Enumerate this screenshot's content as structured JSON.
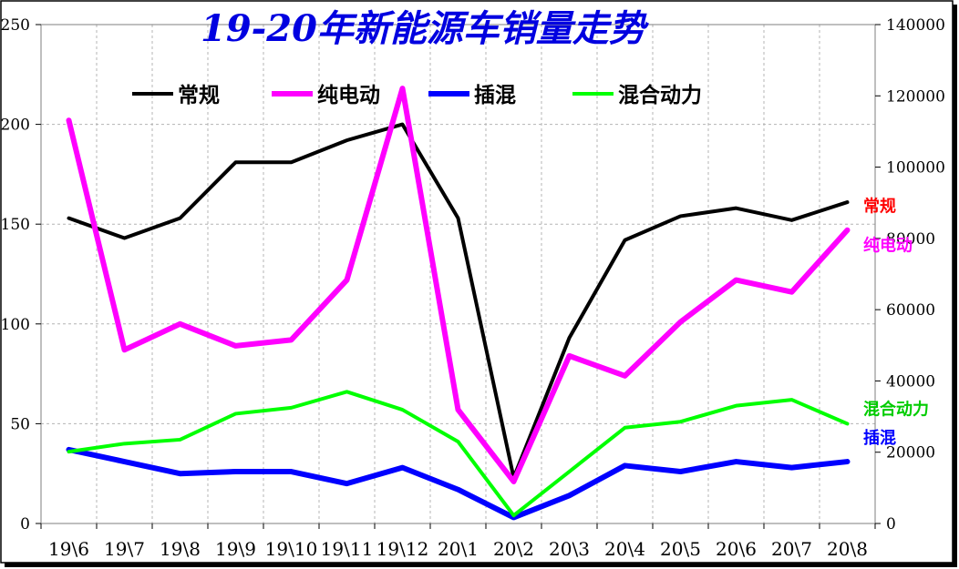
{
  "chart_data": {
    "type": "line",
    "title": "19-20年新能源车销量走势",
    "categories": [
      "19\\6",
      "19\\7",
      "19\\8",
      "19\\9",
      "19\\10",
      "19\\11",
      "19\\12",
      "20\\1",
      "20\\2",
      "20\\3",
      "20\\4",
      "20\\5",
      "20\\6",
      "20\\7",
      "20\\8"
    ],
    "left_axis": {
      "ylim": [
        0,
        250
      ],
      "ticks": [
        0,
        50,
        100,
        150,
        200,
        250
      ]
    },
    "right_axis": {
      "ylim": [
        0,
        140000
      ],
      "ticks": [
        0,
        20000,
        40000,
        60000,
        80000,
        100000,
        120000,
        140000
      ]
    },
    "grid": true,
    "legend_position": "top",
    "series": [
      {
        "name": "常规",
        "color": "#000000",
        "axis": "left",
        "values": [
          153,
          143,
          153,
          181,
          181,
          192,
          200,
          153,
          23,
          93,
          142,
          154,
          158,
          152,
          161
        ]
      },
      {
        "name": "纯电动",
        "color": "#ff00ff",
        "axis": "left",
        "values": [
          202,
          87,
          100,
          89,
          92,
          122,
          218,
          57,
          21,
          84,
          74,
          101,
          122,
          116,
          147
        ]
      },
      {
        "name": "插混",
        "color": "#0000ff",
        "axis": "left",
        "values": [
          37,
          31,
          25,
          26,
          26,
          20,
          28,
          17,
          3,
          14,
          29,
          26,
          31,
          28,
          31
        ]
      },
      {
        "name": "混合动力",
        "color": "#00ff00",
        "axis": "left",
        "values": [
          36,
          40,
          42,
          55,
          58,
          66,
          57,
          41,
          4,
          26,
          48,
          51,
          59,
          62,
          50
        ]
      }
    ],
    "end_labels": [
      {
        "text": "常规",
        "color": "#ff0000",
        "right_value": 89000
      },
      {
        "text": "纯电动",
        "color": "#ff00ff",
        "right_value": 78000
      },
      {
        "text": "混合动力",
        "color": "#00cc00",
        "right_value": 32000
      },
      {
        "text": "插混",
        "color": "#0000ff",
        "right_value": 24000
      }
    ]
  }
}
